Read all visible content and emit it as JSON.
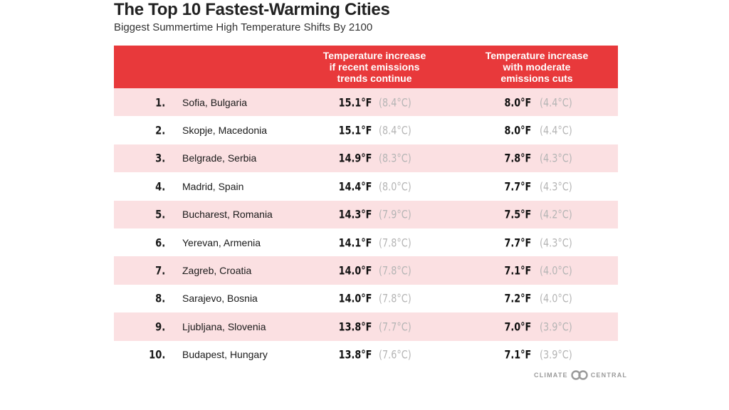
{
  "title": "The Top 10 Fastest-Warming Cities",
  "subtitle": "Biggest Summertime High Temperature Shifts By 2100",
  "brand": {
    "left": "CLIMATE",
    "right": "CENTRAL"
  },
  "chart_data": {
    "type": "table",
    "title": "The Top 10 Fastest-Warming Cities",
    "subtitle": "Biggest Summertime High Temperature Shifts By 2100",
    "columns": [
      "",
      "",
      "Temperature increase\nif recent emissions\ntrends continue",
      "Temperature increase\nwith moderate\nemissions cuts"
    ],
    "rows": [
      {
        "rank": "1.",
        "city": "Sofia, Bulgaria",
        "recent_f": "15.1°F",
        "recent_c": "(8.4°C)",
        "moderate_f": "8.0°F",
        "moderate_c": "(4.4°C)"
      },
      {
        "rank": "2.",
        "city": "Skopje, Macedonia",
        "recent_f": "15.1°F",
        "recent_c": "(8.4°C)",
        "moderate_f": "8.0°F",
        "moderate_c": "(4.4°C)"
      },
      {
        "rank": "3.",
        "city": "Belgrade, Serbia",
        "recent_f": "14.9°F",
        "recent_c": "(8.3°C)",
        "moderate_f": "7.8°F",
        "moderate_c": "(4.3°C)"
      },
      {
        "rank": "4.",
        "city": "Madrid, Spain",
        "recent_f": "14.4°F",
        "recent_c": "(8.0°C)",
        "moderate_f": "7.7°F",
        "moderate_c": "(4.3°C)"
      },
      {
        "rank": "5.",
        "city": "Bucharest, Romania",
        "recent_f": "14.3°F",
        "recent_c": "(7.9°C)",
        "moderate_f": "7.5°F",
        "moderate_c": "(4.2°C)"
      },
      {
        "rank": "6.",
        "city": "Yerevan, Armenia",
        "recent_f": "14.1°F",
        "recent_c": "(7.8°C)",
        "moderate_f": "7.7°F",
        "moderate_c": "(4.3°C)"
      },
      {
        "rank": "7.",
        "city": "Zagreb, Croatia",
        "recent_f": "14.0°F",
        "recent_c": "(7.8°C)",
        "moderate_f": "7.1°F",
        "moderate_c": "(4.0°C)"
      },
      {
        "rank": "8.",
        "city": "Sarajevo, Bosnia",
        "recent_f": "14.0°F",
        "recent_c": "(7.8°C)",
        "moderate_f": "7.2°F",
        "moderate_c": "(4.0°C)"
      },
      {
        "rank": "9.",
        "city": "Ljubljana, Slovenia",
        "recent_f": "13.8°F",
        "recent_c": "(7.7°C)",
        "moderate_f": "7.0°F",
        "moderate_c": "(3.9°C)"
      },
      {
        "rank": "10.",
        "city": "Budapest, Hungary",
        "recent_f": "13.8°F",
        "recent_c": "(7.6°C)",
        "moderate_f": "7.1°F",
        "moderate_c": "(3.9°C)"
      }
    ],
    "colors": {
      "header": "#e8393b",
      "shaded_row": "#fbe0e2",
      "celsius_text": "#b5b5b5"
    }
  }
}
